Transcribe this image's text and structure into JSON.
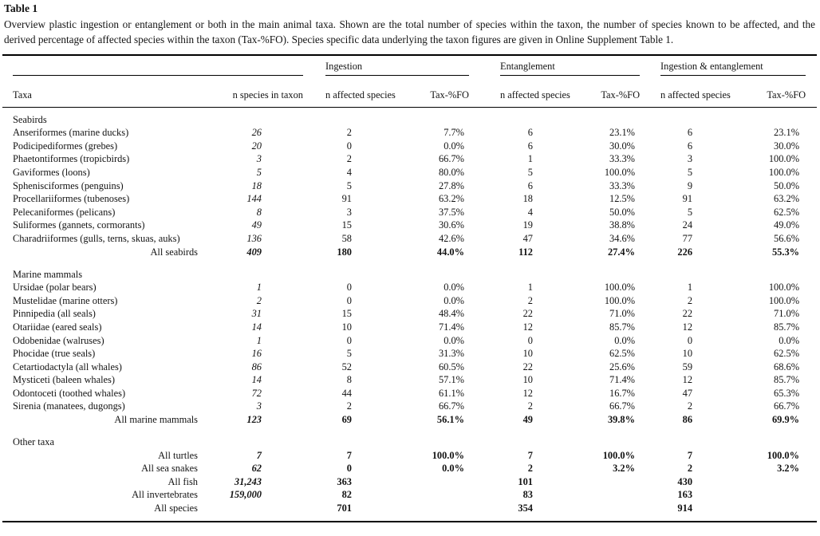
{
  "page": {
    "title": "Table 1",
    "caption": "Overview plastic ingestion or entanglement or both in the main animal taxa. Shown are the total number of species within the taxon, the number of species known to be affected, and the derived percentage of affected species within the taxon (Tax-%FO). Species specific data underlying the taxon figures are given in Online Supplement Table 1."
  },
  "table": {
    "header": {
      "taxa": "Taxa",
      "n_species": "n species in taxon",
      "groups": [
        {
          "label": "Ingestion",
          "n_affected": "n affected species",
          "fo": "Tax-%FO"
        },
        {
          "label": "Entanglement",
          "n_affected": "n affected species",
          "fo": "Tax-%FO"
        },
        {
          "label": "Ingestion & entanglement",
          "n_affected": "n affected species",
          "fo": "Tax-%FO"
        }
      ]
    },
    "sections": [
      {
        "name": "Seabirds",
        "rows": [
          {
            "taxa": "Anseriformes (marine ducks)",
            "n_species": "26",
            "ing_n": "2",
            "ing_fo": "7.7%",
            "ent_n": "6",
            "ent_fo": "23.1%",
            "ie_n": "6",
            "ie_fo": "23.1%",
            "summary": false
          },
          {
            "taxa": "Podicipediformes (grebes)",
            "n_species": "20",
            "ing_n": "0",
            "ing_fo": "0.0%",
            "ent_n": "6",
            "ent_fo": "30.0%",
            "ie_n": "6",
            "ie_fo": "30.0%",
            "summary": false
          },
          {
            "taxa": "Phaetontiformes (tropicbirds)",
            "n_species": "3",
            "ing_n": "2",
            "ing_fo": "66.7%",
            "ent_n": "1",
            "ent_fo": "33.3%",
            "ie_n": "3",
            "ie_fo": "100.0%",
            "summary": false
          },
          {
            "taxa": "Gaviformes (loons)",
            "n_species": "5",
            "ing_n": "4",
            "ing_fo": "80.0%",
            "ent_n": "5",
            "ent_fo": "100.0%",
            "ie_n": "5",
            "ie_fo": "100.0%",
            "summary": false
          },
          {
            "taxa": "Sphenisciformes (penguins)",
            "n_species": "18",
            "ing_n": "5",
            "ing_fo": "27.8%",
            "ent_n": "6",
            "ent_fo": "33.3%",
            "ie_n": "9",
            "ie_fo": "50.0%",
            "summary": false
          },
          {
            "taxa": "Procellariiformes (tubenoses)",
            "n_species": "144",
            "ing_n": "91",
            "ing_fo": "63.2%",
            "ent_n": "18",
            "ent_fo": "12.5%",
            "ie_n": "91",
            "ie_fo": "63.2%",
            "summary": false
          },
          {
            "taxa": "Pelecaniformes (pelicans)",
            "n_species": "8",
            "ing_n": "3",
            "ing_fo": "37.5%",
            "ent_n": "4",
            "ent_fo": "50.0%",
            "ie_n": "5",
            "ie_fo": "62.5%",
            "summary": false
          },
          {
            "taxa": "Suliformes (gannets, cormorants)",
            "n_species": "49",
            "ing_n": "15",
            "ing_fo": "30.6%",
            "ent_n": "19",
            "ent_fo": "38.8%",
            "ie_n": "24",
            "ie_fo": "49.0%",
            "summary": false
          },
          {
            "taxa": "Charadriiformes (gulls, terns, skuas, auks)",
            "n_species": "136",
            "ing_n": "58",
            "ing_fo": "42.6%",
            "ent_n": "47",
            "ent_fo": "34.6%",
            "ie_n": "77",
            "ie_fo": "56.6%",
            "summary": false
          },
          {
            "taxa": "All seabirds",
            "n_species": "409",
            "ing_n": "180",
            "ing_fo": "44.0%",
            "ent_n": "112",
            "ent_fo": "27.4%",
            "ie_n": "226",
            "ie_fo": "55.3%",
            "summary": true
          }
        ]
      },
      {
        "name": "Marine mammals",
        "rows": [
          {
            "taxa": "Ursidae (polar bears)",
            "n_species": "1",
            "ing_n": "0",
            "ing_fo": "0.0%",
            "ent_n": "1",
            "ent_fo": "100.0%",
            "ie_n": "1",
            "ie_fo": "100.0%",
            "summary": false
          },
          {
            "taxa": "Mustelidae (marine otters)",
            "n_species": "2",
            "ing_n": "0",
            "ing_fo": "0.0%",
            "ent_n": "2",
            "ent_fo": "100.0%",
            "ie_n": "2",
            "ie_fo": "100.0%",
            "summary": false
          },
          {
            "taxa": "Pinnipedia (all seals)",
            "n_species": "31",
            "ing_n": "15",
            "ing_fo": "48.4%",
            "ent_n": "22",
            "ent_fo": "71.0%",
            "ie_n": "22",
            "ie_fo": "71.0%",
            "summary": false
          },
          {
            "taxa": "Otariidae (eared seals)",
            "n_species": "14",
            "ing_n": "10",
            "ing_fo": "71.4%",
            "ent_n": "12",
            "ent_fo": "85.7%",
            "ie_n": "12",
            "ie_fo": "85.7%",
            "summary": false
          },
          {
            "taxa": "Odobenidae (walruses)",
            "n_species": "1",
            "ing_n": "0",
            "ing_fo": "0.0%",
            "ent_n": "0",
            "ent_fo": "0.0%",
            "ie_n": "0",
            "ie_fo": "0.0%",
            "summary": false
          },
          {
            "taxa": "Phocidae (true seals)",
            "n_species": "16",
            "ing_n": "5",
            "ing_fo": "31.3%",
            "ent_n": "10",
            "ent_fo": "62.5%",
            "ie_n": "10",
            "ie_fo": "62.5%",
            "summary": false
          },
          {
            "taxa": "Cetartiodactyla (all whales)",
            "n_species": "86",
            "ing_n": "52",
            "ing_fo": "60.5%",
            "ent_n": "22",
            "ent_fo": "25.6%",
            "ie_n": "59",
            "ie_fo": "68.6%",
            "summary": false
          },
          {
            "taxa": "Mysticeti (baleen whales)",
            "n_species": "14",
            "ing_n": "8",
            "ing_fo": "57.1%",
            "ent_n": "10",
            "ent_fo": "71.4%",
            "ie_n": "12",
            "ie_fo": "85.7%",
            "summary": false
          },
          {
            "taxa": "Odontoceti (toothed whales)",
            "n_species": "72",
            "ing_n": "44",
            "ing_fo": "61.1%",
            "ent_n": "12",
            "ent_fo": "16.7%",
            "ie_n": "47",
            "ie_fo": "65.3%",
            "summary": false
          },
          {
            "taxa": "Sirenia (manatees, dugongs)",
            "n_species": "3",
            "ing_n": "2",
            "ing_fo": "66.7%",
            "ent_n": "2",
            "ent_fo": "66.7%",
            "ie_n": "2",
            "ie_fo": "66.7%",
            "summary": false
          },
          {
            "taxa": "All marine mammals",
            "n_species": "123",
            "ing_n": "69",
            "ing_fo": "56.1%",
            "ent_n": "49",
            "ent_fo": "39.8%",
            "ie_n": "86",
            "ie_fo": "69.9%",
            "summary": true
          }
        ]
      },
      {
        "name": "Other taxa",
        "rows": [
          {
            "taxa": "All turtles",
            "n_species": "7",
            "ing_n": "7",
            "ing_fo": "100.0%",
            "ent_n": "7",
            "ent_fo": "100.0%",
            "ie_n": "7",
            "ie_fo": "100.0%",
            "summary": true
          },
          {
            "taxa": "All sea snakes",
            "n_species": "62",
            "ing_n": "0",
            "ing_fo": "0.0%",
            "ent_n": "2",
            "ent_fo": "3.2%",
            "ie_n": "2",
            "ie_fo": "3.2%",
            "summary": true
          },
          {
            "taxa": "All fish",
            "n_species": "31,243",
            "ing_n": "363",
            "ing_fo": "",
            "ent_n": "101",
            "ent_fo": "",
            "ie_n": "430",
            "ie_fo": "",
            "summary": true
          },
          {
            "taxa": "All invertebrates",
            "n_species": "159,000",
            "ing_n": "82",
            "ing_fo": "",
            "ent_n": "83",
            "ent_fo": "",
            "ie_n": "163",
            "ie_fo": "",
            "summary": true
          },
          {
            "taxa": "All species",
            "n_species": "",
            "ing_n": "701",
            "ing_fo": "",
            "ent_n": "354",
            "ent_fo": "",
            "ie_n": "914",
            "ie_fo": "",
            "summary": true
          }
        ]
      }
    ]
  },
  "colors": {
    "text": "#131313",
    "rule": "#000000",
    "background": "#ffffff"
  }
}
